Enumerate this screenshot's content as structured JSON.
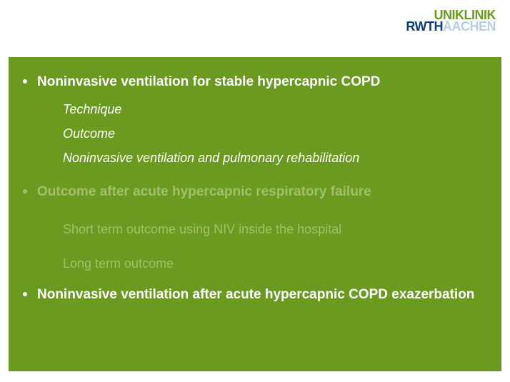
{
  "logo": {
    "line1": "UNIKLINIK",
    "line2a": "RWTH",
    "line2b": "AACHEN",
    "colors": {
      "uniklinik": "#6a9a1f",
      "rwth": "#0a3d78",
      "aachen": "#b8cde0"
    }
  },
  "slide": {
    "background": "#6a9a1f",
    "text_active": "#ffffff",
    "text_inactive": "#a2c06a",
    "heading_fontsize": 19,
    "sub_fontsize": 18,
    "items": [
      {
        "heading": "Noninvasive ventilation for stable hypercapnic COPD",
        "active": true,
        "subs": [
          "Technique",
          "Outcome",
          "Noninvasive ventilation and pulmonary rehabilitation"
        ],
        "subs_italic": true
      },
      {
        "heading": "Outcome after acute hypercapnic respiratory failure",
        "active": false,
        "subs": [
          "Short term outcome using NIV inside the hospital",
          "Long term outcome"
        ],
        "subs_italic": false
      },
      {
        "heading": "Noninvasive ventilation after acute hypercapnic COPD exazerbation",
        "active": true,
        "subs": []
      }
    ]
  }
}
